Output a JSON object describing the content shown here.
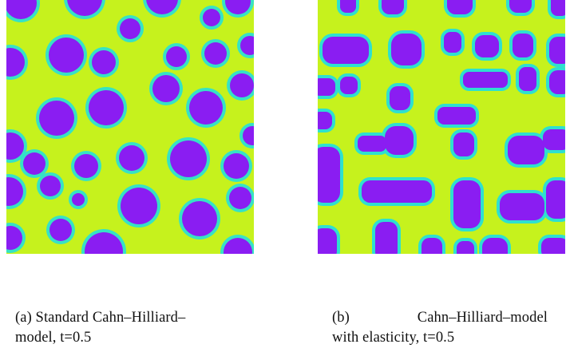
{
  "figure": {
    "background_color": "#c6f21d",
    "particle_color": "#8a1df2",
    "halo_color": "#2ee0cf",
    "panels": [
      {
        "id": "a",
        "caption_lines": [
          "(a) Standard Cahn–Hilliard–",
          "model, t=0.5"
        ],
        "microstructure": "circular-droplets"
      },
      {
        "id": "b",
        "caption_label": "(b)",
        "caption_line1_rest": "Cahn–Hilliard–model",
        "caption_line2": "with elasticity, t=0.5",
        "microstructure": "rectangular-precipitates"
      }
    ]
  }
}
